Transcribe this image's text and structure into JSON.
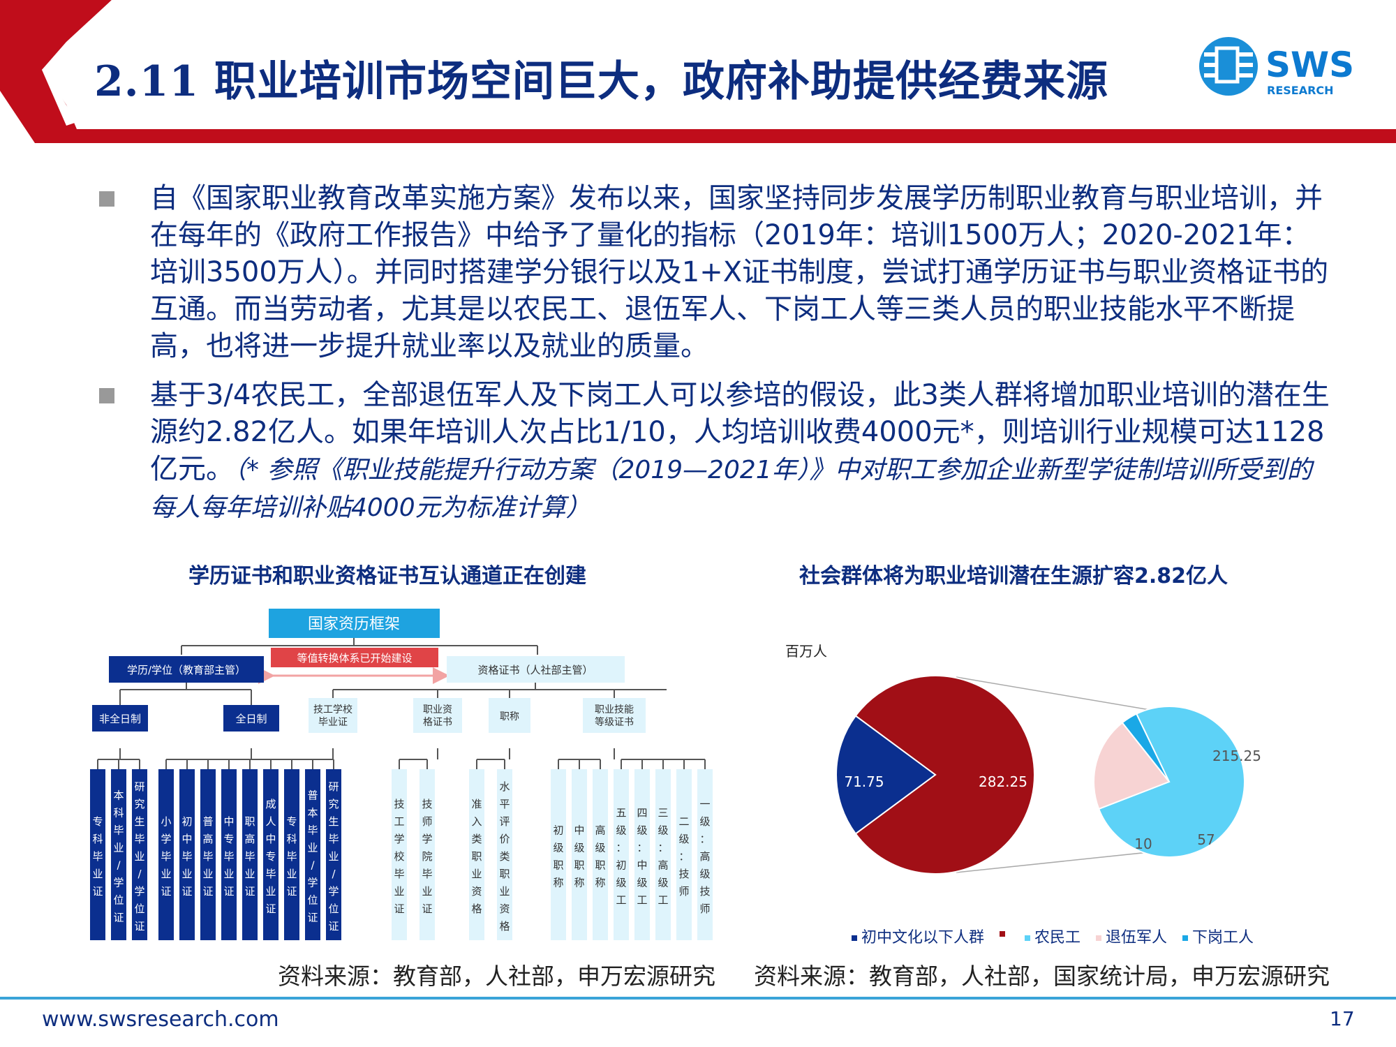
{
  "title": "2.11 职业培训市场空间巨大，政府补助提供经费来源",
  "logo": {
    "text": "SWS",
    "subtext": "RESEARCH"
  },
  "bullets": [
    {
      "text": "自《国家职业教育改革实施方案》发布以来，国家坚持同步发展学历制职业教育与职业培训，并在每年的《政府工作报告》中给予了量化的指标（2019年：培训1500万人；2020-2021年：培训3500万人）。并同时搭建学分银行以及1+X证书制度，尝试打通学历证书与职业资格证书的互通。而当劳动者，尤其是以农民工、退伍军人、下岗工人等三类人员的职业技能水平不断提高，也将进一步提升就业率以及就业的质量。"
    },
    {
      "text": "基于3/4农民工，全部退伍军人及下岗工人可以参培的假设，此3类人群将增加职业培训的潜在生源约2.82亿人。如果年培训人次占比1/10，人均培训收费4000元*，则培训行业规模可达1128亿元。",
      "note": "（* 参照《职业技能提升行动方案（2019—2021年）》中对职工参加企业新型学徒制培训所受到的每人每年培训补贴4000元为标准计算）"
    }
  ],
  "diagram": {
    "title": "学历证书和职业资格证书互认通道正在创建",
    "root": "国家资历框架",
    "bridge": "等值转换体系已开始建设",
    "left_branch": "学历/学位（教育部主管）",
    "right_branch": "资格证书（人社部主管）",
    "left_groups": [
      "非全日制",
      "全日制"
    ],
    "part_time_leaves": [
      "专科毕业证",
      "本科毕业/学位证",
      "研究生毕业/学位证"
    ],
    "full_time_leaves": [
      "小学毕业证",
      "初中毕业证",
      "普高毕业证",
      "中专毕业证",
      "职高毕业证",
      "成人中专毕业证",
      "专科毕业证",
      "普本毕业/学位证",
      "研究生毕业/学位证"
    ],
    "right_groups": [
      "技工学校毕业证",
      "职业资格证书",
      "职称",
      "职业技能等级证书"
    ],
    "tech_school_leaves": [
      "技工学校毕业证",
      "技师学院毕业证"
    ],
    "qualification_leaves": [
      "准入类职业资格",
      "水平评价类职业资格"
    ],
    "title_leaves": [
      "初级职称",
      "中级职称",
      "高级职称"
    ],
    "skill_leaves": [
      "五级：初级工",
      "四级：中级工",
      "三级：高级工",
      "二级：技师",
      "一级：高级技师"
    ],
    "source": "资料来源：教育部，人社部，申万宏源研究"
  },
  "chart": {
    "title": "社会群体将为职业培训潜在生源扩容2.82亿人",
    "unit": "百万人",
    "source": "资料来源：教育部，人社部，国家统计局，申万宏源研究",
    "colors": {
      "low_edu": "#0b2f8f",
      "migrant": "#a10f16",
      "veterans": "#f7d3d3",
      "laid_off": "#1aa8e6",
      "sub_migrant": "#5dd2f7"
    }
  },
  "chart_data": {
    "type": "pie",
    "unit": "百万人",
    "main_pie": [
      {
        "name": "初中文化以下人群",
        "value": 71.75
      },
      {
        "name": "",
        "value": 282.25
      }
    ],
    "sub_pie": [
      {
        "name": "农民工",
        "value": 215.25
      },
      {
        "name": "退伍军人",
        "value": 57
      },
      {
        "name": "下岗工人",
        "value": 10
      }
    ],
    "legend": [
      "初中文化以下人群",
      "",
      "农民工",
      "退伍军人",
      "下岗工人"
    ],
    "legend_position": "bottom"
  },
  "footer": {
    "url": "www.swsresearch.com",
    "page": "17"
  }
}
